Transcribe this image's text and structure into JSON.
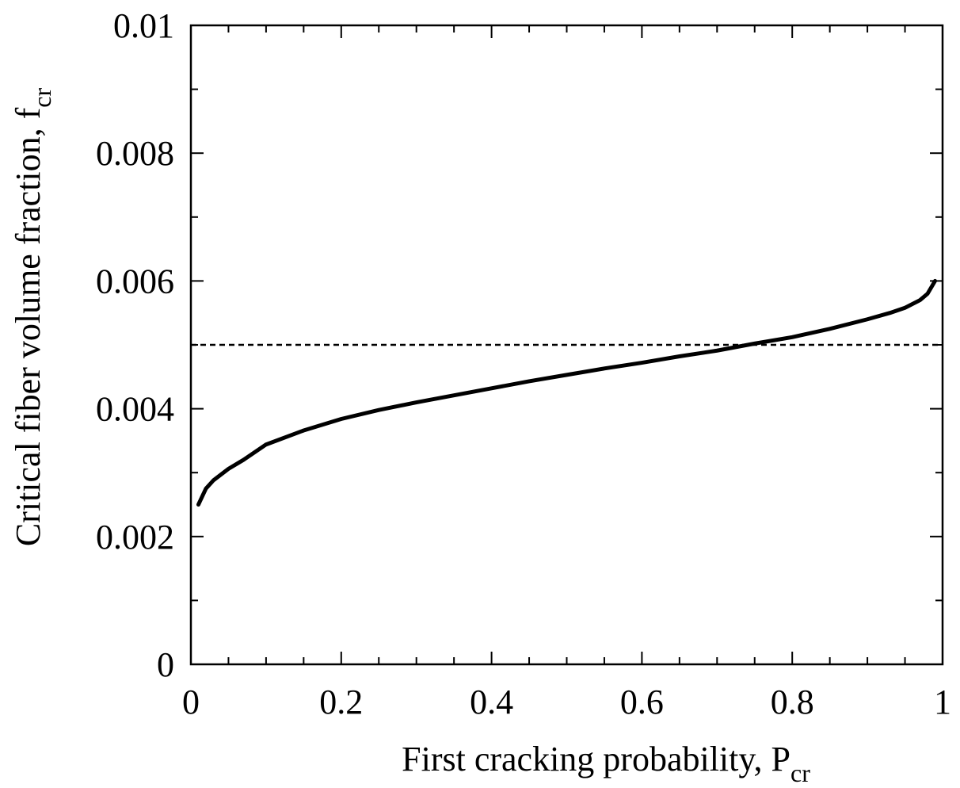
{
  "chart_data": {
    "type": "line",
    "title": "",
    "xlabel": {
      "main": "First cracking probability, P",
      "sub": "cr"
    },
    "ylabel": {
      "main": "Critical fiber volume fraction, f",
      "sub": "cr"
    },
    "xlim": [
      0,
      1
    ],
    "ylim": [
      0,
      0.01
    ],
    "x_ticks": [
      0,
      0.2,
      0.4,
      0.6,
      0.8,
      1
    ],
    "x_tick_labels": [
      "0",
      "0.2",
      "0.4",
      "0.6",
      "0.8",
      "1"
    ],
    "y_ticks": [
      0,
      0.002,
      0.004,
      0.006,
      0.008,
      0.01
    ],
    "y_tick_labels": [
      "0",
      "0.002",
      "0.004",
      "0.006",
      "0.008",
      "0.01"
    ],
    "grid": false,
    "series": [
      {
        "style": "solid",
        "color": "#000000",
        "x": [
          0.01,
          0.02,
          0.03,
          0.05,
          0.07,
          0.1,
          0.15,
          0.2,
          0.25,
          0.3,
          0.35,
          0.4,
          0.45,
          0.5,
          0.55,
          0.6,
          0.65,
          0.7,
          0.75,
          0.8,
          0.85,
          0.9,
          0.93,
          0.95,
          0.97,
          0.98,
          0.99
        ],
        "y": [
          0.0025,
          0.00275,
          0.00288,
          0.00306,
          0.0032,
          0.00344,
          0.00366,
          0.00384,
          0.00398,
          0.0041,
          0.00421,
          0.00432,
          0.00443,
          0.00453,
          0.00463,
          0.00472,
          0.00482,
          0.00491,
          0.00502,
          0.00512,
          0.00525,
          0.0054,
          0.0055,
          0.00558,
          0.0057,
          0.0058,
          0.006
        ]
      },
      {
        "style": "dashed",
        "color": "#000000",
        "x": [
          0,
          1
        ],
        "y": [
          0.005,
          0.005
        ]
      }
    ]
  }
}
